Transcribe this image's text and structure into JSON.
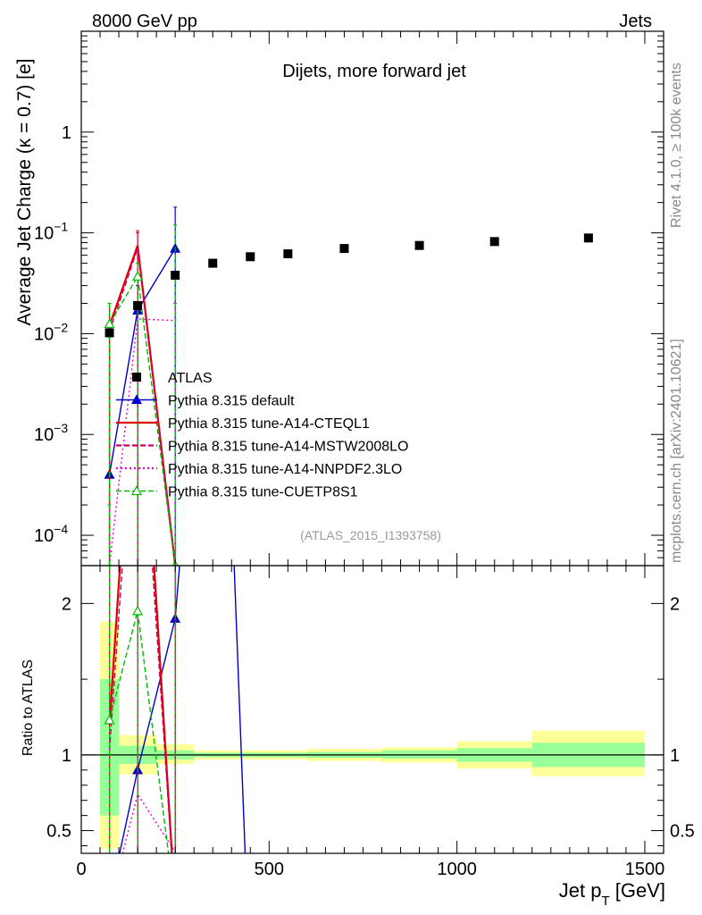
{
  "header": {
    "left": "8000 GeV pp",
    "right": "Jets"
  },
  "side_labels": {
    "rivet": "Rivet 4.1.0, ≥ 100k events",
    "mcplots": "mcplots.cern.ch [arXiv:2401.10621]"
  },
  "colors": {
    "data": "#000000",
    "default": "#0000cc",
    "cteql1": "#dd0000",
    "mstw": "#cc0066",
    "nnpdf": "#ee00cc",
    "cuetp8s1": "#00bb00",
    "band_inner": "#99ff99",
    "band_outer": "#ffff99"
  },
  "chart_data": [
    {
      "type": "scatter",
      "name": "main",
      "title": "Dijets, more forward jet",
      "ylabel": "Average Jet Charge (κ = 0.7) [e]",
      "yscale": "log",
      "ylim": [
        5e-05,
        10
      ],
      "xlim": [
        0,
        1550
      ],
      "watermark": "(ATLAS_2015_I1393758)",
      "ytick_labels": {
        "e-4": "10",
        "e-3": "10",
        "e-2": "10",
        "e-1": "10",
        "e0": "1"
      },
      "ytick_exponents": {
        "e-4": "−4",
        "e-3": "−3",
        "e-2": "−2",
        "e-1": "−1"
      },
      "data_points": {
        "x": [
          75,
          150,
          250,
          350,
          450,
          550,
          700,
          900,
          1100,
          1350
        ],
        "xerr": [
          25,
          50,
          50,
          50,
          50,
          50,
          100,
          100,
          100,
          150
        ],
        "y": [
          0.0102,
          0.019,
          0.038,
          0.05,
          0.058,
          0.062,
          0.07,
          0.075,
          0.082,
          0.089
        ]
      },
      "series": [
        {
          "name": "Pythia 8.315 default",
          "color_key": "default",
          "style": "solid",
          "marker": "triangle-filled",
          "x": [
            75,
            150,
            250
          ],
          "y": [
            0.0004,
            0.017,
            0.07
          ],
          "err_hi": [
            0.012,
            0.03,
            0.18
          ],
          "err_lo": [
            5e-05,
            5e-05,
            5e-05
          ]
        },
        {
          "name": "Pythia 8.315 tune-A14-CTEQL1",
          "color_key": "cteql1",
          "style": "solid",
          "marker": "none",
          "x": [
            75,
            150,
            250
          ],
          "y": [
            0.012,
            0.075,
            5e-05
          ],
          "err_hi": [
            0.02,
            0.105,
            5e-05
          ],
          "err_lo": [
            5e-05,
            5e-05,
            5e-05
          ]
        },
        {
          "name": "Pythia 8.315 tune-A14-MSTW2008LO",
          "color_key": "mstw",
          "style": "dashed",
          "marker": "none",
          "x": [
            75,
            150,
            250
          ],
          "y": [
            0.0105,
            0.07,
            5e-05
          ],
          "err_hi": [
            0.02,
            0.1,
            5e-05
          ],
          "err_lo": [
            5e-05,
            5e-05,
            5e-05
          ]
        },
        {
          "name": "Pythia 8.315 tune-A14-NNPDF2.3LO",
          "color_key": "nnpdf",
          "style": "dotted",
          "marker": "none",
          "x": [
            75,
            150,
            250
          ],
          "y": [
            5e-05,
            0.014,
            0.0135
          ],
          "err_hi": [
            0.0002,
            0.02,
            0.02
          ],
          "err_lo": [
            5e-05,
            5e-05,
            5e-05
          ]
        },
        {
          "name": "Pythia 8.315 tune-CUETP8S1",
          "color_key": "cuetp8s1",
          "style": "dashed",
          "marker": "triangle-open",
          "x": [
            75,
            150,
            250
          ],
          "y": [
            0.0125,
            0.037,
            5e-05
          ],
          "err_hi": [
            0.02,
            0.05,
            0.12
          ],
          "err_lo": [
            5e-05,
            5e-05,
            5e-05
          ]
        }
      ],
      "legend": [
        "ATLAS",
        "Pythia 8.315 default",
        "Pythia 8.315 tune-A14-CTEQL1",
        "Pythia 8.315 tune-A14-MSTW2008LO",
        "Pythia 8.315 tune-A14-NNPDF2.3LO",
        "Pythia 8.315 tune-CUETP8S1"
      ],
      "legend_position": "lower-left"
    },
    {
      "type": "line",
      "name": "ratio",
      "ylabel": "Ratio to ATLAS",
      "xlabel_main": "Jet p",
      "xlabel_sub": "T",
      "xlabel_unit": " [GeV]",
      "ylim": [
        0.35,
        2.25
      ],
      "xlim": [
        0,
        1550
      ],
      "yticks": [
        "0.5",
        "1",
        "2"
      ],
      "xticks": [
        "0",
        "500",
        "1000",
        "1500"
      ],
      "bands": {
        "edges": [
          50,
          100,
          200,
          300,
          400,
          600,
          800,
          1000,
          1200,
          1500
        ],
        "inner_lo": [
          0.6,
          0.94,
          0.97,
          0.985,
          0.985,
          0.98,
          0.975,
          0.955,
          0.92
        ],
        "inner_hi": [
          1.5,
          1.06,
          1.03,
          1.015,
          1.015,
          1.02,
          1.03,
          1.045,
          1.08
        ],
        "outer_lo": [
          0.38,
          0.87,
          0.94,
          0.97,
          0.97,
          0.96,
          0.95,
          0.91,
          0.86
        ],
        "outer_hi": [
          1.88,
          1.13,
          1.07,
          1.03,
          1.03,
          1.04,
          1.05,
          1.09,
          1.16
        ]
      },
      "series": [
        {
          "name": "default",
          "color_key": "default",
          "style": "solid",
          "marker": "triangle-filled",
          "x": [
            75,
            150,
            250
          ],
          "y": [
            0.04,
            0.9,
            1.9
          ],
          "extra": [
            [
              250,
              1.9
            ],
            [
              320,
              4.0
            ],
            [
              380,
              4.0
            ],
            [
              440,
              0.1
            ]
          ]
        },
        {
          "name": "CTEQL1",
          "color_key": "cteql1",
          "style": "solid",
          "marker": "none",
          "x": [
            75,
            150,
            250
          ],
          "y": [
            1.2,
            4.0,
            0.001
          ]
        },
        {
          "name": "MSTW2008LO",
          "color_key": "mstw",
          "style": "dashed",
          "marker": "none",
          "x": [
            75,
            150,
            250
          ],
          "y": [
            1.03,
            3.7,
            0.001
          ]
        },
        {
          "name": "NNPDF2.3LO",
          "color_key": "nnpdf",
          "style": "dotted",
          "marker": "none",
          "x": [
            75,
            150,
            250
          ],
          "y": [
            0.005,
            0.74,
            0.36
          ]
        },
        {
          "name": "CUETP8S1",
          "color_key": "cuetp8s1",
          "style": "dashed",
          "marker": "triangle-open",
          "x": [
            75,
            150,
            250
          ],
          "y": [
            1.23,
            1.95,
            0.001
          ]
        }
      ]
    }
  ]
}
